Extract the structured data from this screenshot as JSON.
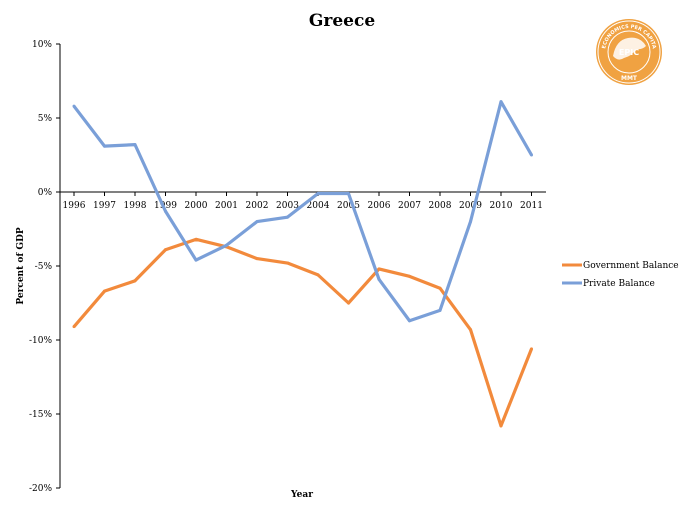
{
  "chart_data": {
    "type": "line",
    "title": "Greece",
    "xlabel": "Year",
    "ylabel": "Percent of GDP",
    "categories": [
      "1996",
      "1997",
      "1998",
      "1999",
      "2000",
      "2001",
      "2002",
      "2003",
      "2004",
      "2005",
      "2006",
      "2007",
      "2008",
      "2009",
      "2010",
      "2011"
    ],
    "ylim": [
      -20,
      10
    ],
    "yticks": [
      10,
      5,
      0,
      -5,
      -10,
      -15,
      -20
    ],
    "ytick_labels": [
      "10%",
      "5%",
      "0%",
      "-5%",
      "-10%",
      "-15%",
      "-20%"
    ],
    "grid": false,
    "legend_position": "right",
    "series": [
      {
        "name": "Government Balance",
        "color": "#f28a3c",
        "values": [
          -9.1,
          -6.7,
          -6.0,
          -3.9,
          -3.2,
          -3.7,
          -4.5,
          -4.8,
          -5.6,
          -7.5,
          -5.2,
          -5.7,
          -6.5,
          -9.3,
          -15.8,
          -10.6
        ]
      },
      {
        "name": "Private Balance",
        "color": "#7a9fd8",
        "values": [
          5.8,
          3.1,
          3.2,
          -1.3,
          -4.6,
          -3.6,
          -2.0,
          -1.7,
          -0.1,
          -0.1,
          -5.9,
          -8.7,
          -8.0,
          -2.0,
          6.1,
          2.5
        ]
      }
    ]
  },
  "logo": {
    "top_text": "ECONOMICS PER CAPITA",
    "center_text": "EPIC",
    "bottom_text": "MMT",
    "color": "#f0a242"
  }
}
